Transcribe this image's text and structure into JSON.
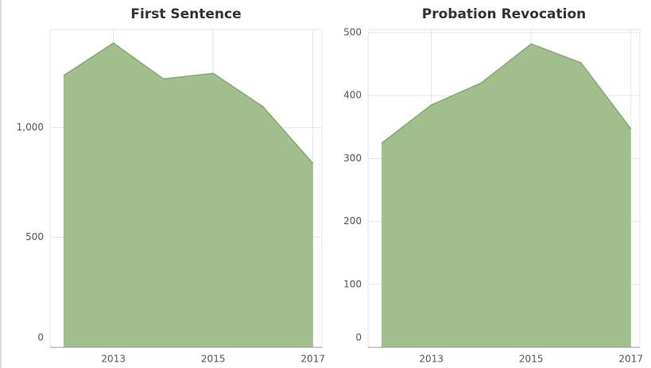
{
  "chart_data": [
    {
      "type": "area",
      "title": "First Sentence",
      "x": [
        2012,
        2013,
        2014,
        2015,
        2016,
        2017
      ],
      "values": [
        1236,
        1384,
        1221,
        1246,
        1094,
        837
      ],
      "color": "#9dba87",
      "xlim": [
        2011.73,
        2017.18
      ],
      "xticks": [
        2013,
        2015,
        2017
      ],
      "ylim": [
        0,
        1446
      ],
      "yticks": [
        0,
        500,
        {
          "value": 1000,
          "label": "1,000"
        }
      ],
      "grid": true
    },
    {
      "type": "area",
      "title": "Probation Revocation",
      "x": [
        2012,
        2013,
        2014,
        2015,
        2016,
        2017
      ],
      "values": [
        324,
        385,
        420,
        482,
        452,
        347
      ],
      "color": "#9dba87",
      "xlim": [
        2011.73,
        2017.18
      ],
      "xticks": [
        2013,
        2015,
        2017
      ],
      "ylim": [
        0,
        505
      ],
      "yticks": [
        0,
        100,
        200,
        300,
        400,
        500
      ],
      "grid": true
    }
  ]
}
